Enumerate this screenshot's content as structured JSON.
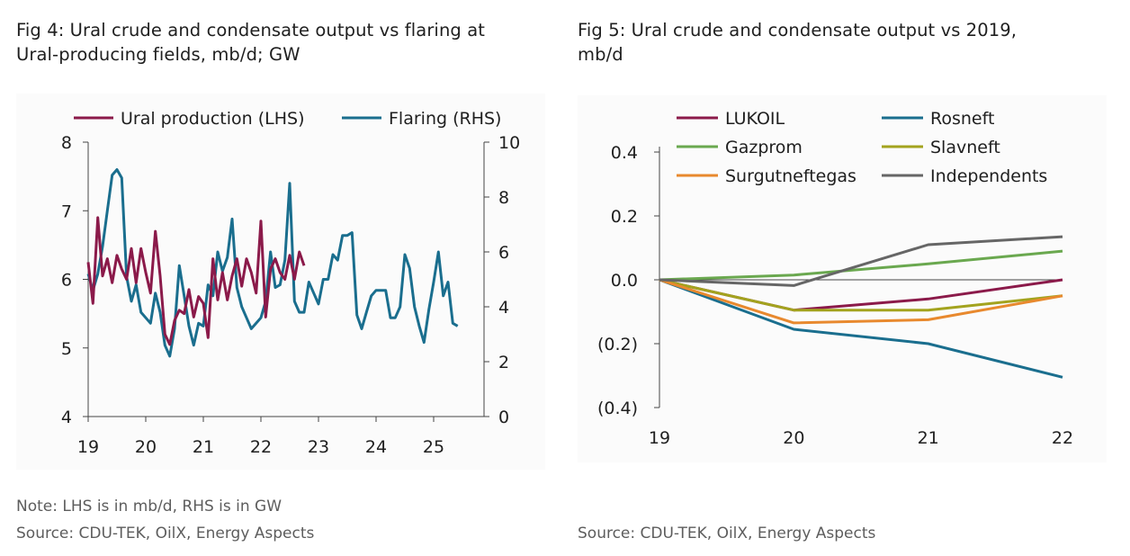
{
  "fig4": {
    "title_line1": "Fig 4: Ural crude and condensate output vs flaring at",
    "title_line2": "Ural-producing fields, mb/d; GW",
    "note": "Note: LHS is in mb/d, RHS is in GW",
    "source": "Source: CDU-TEK, OilX, Energy Aspects"
  },
  "fig5": {
    "title_line1": "Fig 5: Ural crude and condensate output vs 2019,",
    "title_line2": "mb/d",
    "source": "Source: CDU-TEK, OilX, Energy Aspects"
  },
  "chart_data": [
    {
      "type": "line",
      "title": "Fig 4: Ural crude and condensate output vs flaring at Ural-producing fields, mb/d; GW",
      "x_tick_labels": [
        "19",
        "20",
        "21",
        "22",
        "23",
        "24",
        "25"
      ],
      "xlim": [
        2019,
        2025.75
      ],
      "y_left": {
        "ticks": [
          4,
          5,
          6,
          7,
          8
        ],
        "lim": [
          4,
          8
        ]
      },
      "y_right": {
        "ticks": [
          0,
          2,
          4,
          6,
          8,
          10
        ],
        "lim": [
          0,
          10
        ]
      },
      "grid": false,
      "legend_position": "top",
      "series": [
        {
          "name": "Ural production (LHS)",
          "axis": "left",
          "color": "#8b1a4a",
          "start": 2019.0,
          "step": 0.0833333,
          "values": [
            6.25,
            5.65,
            6.9,
            6.05,
            6.3,
            5.95,
            6.35,
            6.15,
            6.0,
            6.45,
            5.95,
            6.45,
            6.1,
            5.8,
            6.7,
            6.05,
            5.2,
            5.05,
            5.4,
            5.55,
            5.5,
            5.85,
            5.45,
            5.75,
            5.65,
            5.15,
            6.3,
            5.7,
            6.1,
            5.7,
            6.05,
            6.3,
            5.9,
            6.3,
            6.1,
            5.8,
            6.85,
            5.45,
            6.15,
            6.3,
            6.1,
            6.0,
            6.35,
            6.0,
            6.4,
            6.2
          ]
        },
        {
          "name": "Flaring (RHS)",
          "axis": "right",
          "color": "#1a6e8e",
          "start": 2019.0,
          "step": 0.0833333,
          "values": [
            5.2,
            4.6,
            5.2,
            6.2,
            7.5,
            8.8,
            9.0,
            8.7,
            5.1,
            4.2,
            4.8,
            3.8,
            3.6,
            3.4,
            4.5,
            3.8,
            2.6,
            2.2,
            3.2,
            5.5,
            4.4,
            3.3,
            2.6,
            3.4,
            3.3,
            4.8,
            4.4,
            6.0,
            5.3,
            5.8,
            7.2,
            4.7,
            4.0,
            3.6,
            3.2,
            3.4,
            3.6,
            4.2,
            6.0,
            4.7,
            4.8,
            5.7,
            8.5,
            4.2,
            3.8,
            3.8,
            4.9,
            4.5,
            4.1,
            5.0,
            5.0,
            5.9,
            5.7,
            6.6,
            6.6,
            6.7,
            3.7,
            3.2,
            3.8,
            4.4,
            4.6,
            4.6,
            4.6,
            3.6,
            3.6,
            4.0,
            5.9,
            5.4,
            4.0,
            3.3,
            2.7,
            3.9,
            4.9,
            6.0,
            4.4,
            4.9,
            3.4,
            3.3
          ]
        }
      ]
    },
    {
      "type": "line",
      "title": "Fig 5: Ural crude and condensate output vs 2019, mb/d",
      "x": [
        "19",
        "20",
        "21",
        "22"
      ],
      "y_ticks": [
        "0.4",
        "0.2",
        "0.0",
        "(0.2)",
        "(0.4)"
      ],
      "ylim": [
        -0.4,
        0.4
      ],
      "grid": false,
      "legend_position": "top",
      "series": [
        {
          "name": "LUKOIL",
          "color": "#8b1a4a",
          "values": [
            0.0,
            -0.095,
            -0.06,
            0.0
          ]
        },
        {
          "name": "Rosneft",
          "color": "#1a6e8e",
          "values": [
            0.0,
            -0.155,
            -0.2,
            -0.305
          ]
        },
        {
          "name": "Gazprom",
          "color": "#6aa84f",
          "values": [
            0.0,
            0.015,
            0.05,
            0.09
          ]
        },
        {
          "name": "Slavneft",
          "color": "#a3a31e",
          "values": [
            0.0,
            -0.095,
            -0.095,
            -0.05
          ]
        },
        {
          "name": "Surgutneftegas",
          "color": "#e8892e",
          "values": [
            0.0,
            -0.135,
            -0.125,
            -0.05
          ]
        },
        {
          "name": "Independents",
          "color": "#666666",
          "values": [
            0.0,
            -0.018,
            0.11,
            0.135
          ]
        }
      ]
    }
  ]
}
